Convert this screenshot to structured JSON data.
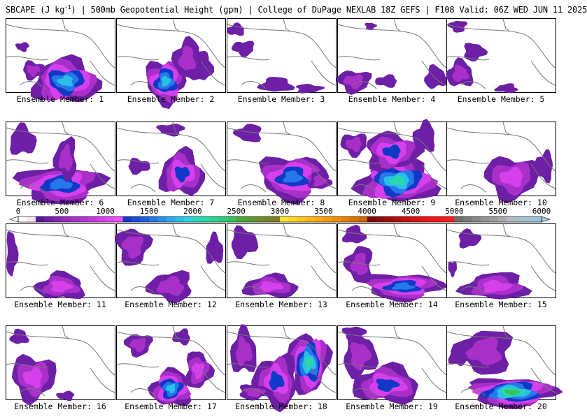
{
  "header": {
    "title_prefix": "SBCAPE (J kg",
    "title_exp": "-1",
    "title_suffix": ") | 500mb Geopotential Height (gpm) | College of DuPage NEXLAB 18Z GEFS | F108 Valid: 06Z WED JUN 11 2025"
  },
  "members": [
    {
      "label": "Ensemble Member: 1",
      "blobs": [
        [
          0.55,
          0.85,
          0.3,
          0.3,
          1800
        ],
        [
          0.25,
          0.7,
          0.1,
          0.12,
          600
        ],
        [
          0.15,
          0.38,
          0.06,
          0.06,
          400
        ]
      ]
    },
    {
      "label": "Ensemble Member: 2",
      "blobs": [
        [
          0.45,
          0.85,
          0.18,
          0.3,
          1800
        ],
        [
          0.65,
          0.55,
          0.12,
          0.28,
          700
        ],
        [
          0.8,
          0.65,
          0.08,
          0.2,
          500
        ]
      ]
    },
    {
      "label": "Ensemble Member: 3",
      "blobs": [
        [
          0.45,
          0.9,
          0.15,
          0.1,
          500
        ],
        [
          0.75,
          0.95,
          0.12,
          0.06,
          400
        ],
        [
          0.15,
          0.4,
          0.1,
          0.1,
          400
        ],
        [
          0.08,
          0.15,
          0.08,
          0.08,
          400
        ]
      ]
    },
    {
      "label": "Ensemble Member: 4",
      "blobs": [
        [
          0.15,
          0.85,
          0.15,
          0.15,
          700
        ],
        [
          0.45,
          0.85,
          0.1,
          0.08,
          500
        ],
        [
          0.9,
          0.8,
          0.1,
          0.15,
          500
        ],
        [
          0.3,
          0.1,
          0.05,
          0.05,
          400
        ]
      ]
    },
    {
      "label": "Ensemble Member: 5",
      "blobs": [
        [
          0.12,
          0.75,
          0.12,
          0.18,
          600
        ],
        [
          0.25,
          0.45,
          0.1,
          0.12,
          500
        ],
        [
          0.1,
          0.1,
          0.08,
          0.08,
          400
        ],
        [
          0.55,
          0.95,
          0.1,
          0.06,
          400
        ]
      ]
    },
    {
      "label": "Ensemble Member: 6",
      "blobs": [
        [
          0.5,
          0.85,
          0.38,
          0.25,
          1700
        ],
        [
          0.55,
          0.5,
          0.1,
          0.28,
          700
        ],
        [
          0.15,
          0.25,
          0.12,
          0.2,
          500
        ]
      ]
    },
    {
      "label": "Ensemble Member: 7",
      "blobs": [
        [
          0.6,
          0.7,
          0.2,
          0.3,
          1300
        ],
        [
          0.2,
          0.6,
          0.1,
          0.1,
          400
        ],
        [
          0.5,
          0.1,
          0.12,
          0.08,
          400
        ]
      ]
    },
    {
      "label": "Ensemble Member: 8",
      "blobs": [
        [
          0.6,
          0.75,
          0.3,
          0.3,
          1700
        ],
        [
          0.2,
          0.15,
          0.12,
          0.12,
          500
        ],
        [
          0.85,
          0.8,
          0.1,
          0.12,
          600
        ]
      ]
    },
    {
      "label": "Ensemble Member: 9",
      "blobs": [
        [
          0.55,
          0.8,
          0.35,
          0.3,
          2300
        ],
        [
          0.5,
          0.4,
          0.25,
          0.25,
          1200
        ],
        [
          0.15,
          0.3,
          0.12,
          0.15,
          700
        ],
        [
          0.8,
          0.2,
          0.1,
          0.2,
          500
        ]
      ]
    },
    {
      "label": "Ensemble Member: 10",
      "blobs": [
        [
          0.6,
          0.75,
          0.25,
          0.28,
          1000
        ],
        [
          0.9,
          0.6,
          0.08,
          0.2,
          500
        ]
      ]
    },
    {
      "label": "Ensemble Member: 11",
      "blobs": [
        [
          0.5,
          0.85,
          0.22,
          0.18,
          1000
        ],
        [
          0.05,
          0.4,
          0.05,
          0.3,
          500
        ]
      ]
    },
    {
      "label": "Ensemble Member: 12",
      "blobs": [
        [
          0.15,
          0.3,
          0.15,
          0.25,
          600
        ],
        [
          0.5,
          0.85,
          0.2,
          0.2,
          800
        ],
        [
          0.9,
          0.35,
          0.08,
          0.2,
          500
        ]
      ]
    },
    {
      "label": "Ensemble Member: 13",
      "blobs": [
        [
          0.4,
          0.85,
          0.25,
          0.15,
          900
        ],
        [
          0.15,
          0.25,
          0.12,
          0.2,
          500
        ]
      ]
    },
    {
      "label": "Ensemble Member: 14",
      "blobs": [
        [
          0.6,
          0.85,
          0.35,
          0.18,
          1600
        ],
        [
          0.2,
          0.55,
          0.12,
          0.25,
          700
        ],
        [
          0.15,
          0.15,
          0.1,
          0.12,
          500
        ]
      ]
    },
    {
      "label": "Ensemble Member: 15",
      "blobs": [
        [
          0.45,
          0.85,
          0.3,
          0.18,
          1000
        ],
        [
          0.2,
          0.2,
          0.1,
          0.12,
          500
        ],
        [
          0.05,
          0.6,
          0.04,
          0.1,
          400
        ]
      ]
    },
    {
      "label": "Ensemble Member: 16",
      "blobs": [
        [
          0.25,
          0.7,
          0.2,
          0.3,
          900
        ],
        [
          0.55,
          0.95,
          0.08,
          0.06,
          500
        ],
        [
          0.12,
          0.15,
          0.08,
          0.1,
          400
        ]
      ]
    },
    {
      "label": "Ensemble Member: 17",
      "blobs": [
        [
          0.5,
          0.85,
          0.18,
          0.25,
          2000
        ],
        [
          0.75,
          0.6,
          0.12,
          0.25,
          1100
        ],
        [
          0.2,
          0.25,
          0.12,
          0.15,
          600
        ],
        [
          0.6,
          0.15,
          0.08,
          0.1,
          400
        ]
      ]
    },
    {
      "label": "Ensemble Member: 18",
      "blobs": [
        [
          0.75,
          0.5,
          0.18,
          0.4,
          2200
        ],
        [
          0.45,
          0.75,
          0.2,
          0.35,
          1300
        ],
        [
          0.15,
          0.35,
          0.12,
          0.3,
          800
        ],
        [
          0.25,
          0.9,
          0.15,
          0.1,
          700
        ]
      ]
    },
    {
      "label": "Ensemble Member: 19",
      "blobs": [
        [
          0.45,
          0.8,
          0.3,
          0.25,
          1300
        ],
        [
          0.2,
          0.4,
          0.15,
          0.3,
          700
        ],
        [
          0.15,
          0.1,
          0.1,
          0.1,
          400
        ]
      ]
    },
    {
      "label": "Ensemble Member: 20",
      "blobs": [
        [
          0.6,
          0.9,
          0.38,
          0.2,
          2500
        ],
        [
          0.35,
          0.35,
          0.25,
          0.3,
          700
        ],
        [
          0.1,
          0.4,
          0.08,
          0.15,
          500
        ]
      ]
    }
  ],
  "colorbar": {
    "min": 0,
    "max": 6000,
    "tick_labels": [
      "0",
      "500",
      "1000",
      "1500",
      "2000",
      "2500",
      "3000",
      "3500",
      "4000",
      "4500",
      "5000",
      "5500",
      "6000"
    ],
    "colors": [
      "#ffffff",
      "#f2e6f2",
      "#56189a",
      "#6d1fa6",
      "#8226b2",
      "#9a2bbd",
      "#a830c8",
      "#b436d2",
      "#c43ae0",
      "#d640ec",
      "#e646f6",
      "#f24ef8",
      "#1238c8",
      "#1a4cd8",
      "#2060e0",
      "#2478e8",
      "#2890ee",
      "#2aa8f0",
      "#2abfe8",
      "#28d6e0",
      "#2ad8c4",
      "#2cd8a8",
      "#2ed490",
      "#30cc78",
      "#36c060",
      "#48a83e",
      "#589a36",
      "#689030",
      "#748628",
      "#7e7c22",
      "#ffe02e",
      "#ffd428",
      "#ffc420",
      "#ffb418",
      "#ffa810",
      "#fc9a0a",
      "#f28c06",
      "#e88002",
      "#de7400",
      "#d06800",
      "#7a0a0a",
      "#8c0a0a",
      "#a00c0c",
      "#b40e0e",
      "#c81010",
      "#d81212",
      "#e81414",
      "#f01616",
      "#f41818",
      "#f81a1a",
      "#6e6e6e",
      "#7a7a7a",
      "#868686",
      "#929292",
      "#9e9e9e",
      "#aaaaaa",
      "#b0bcc4",
      "#a8c0cc",
      "#a0c4d0",
      "#98c8d8"
    ]
  }
}
